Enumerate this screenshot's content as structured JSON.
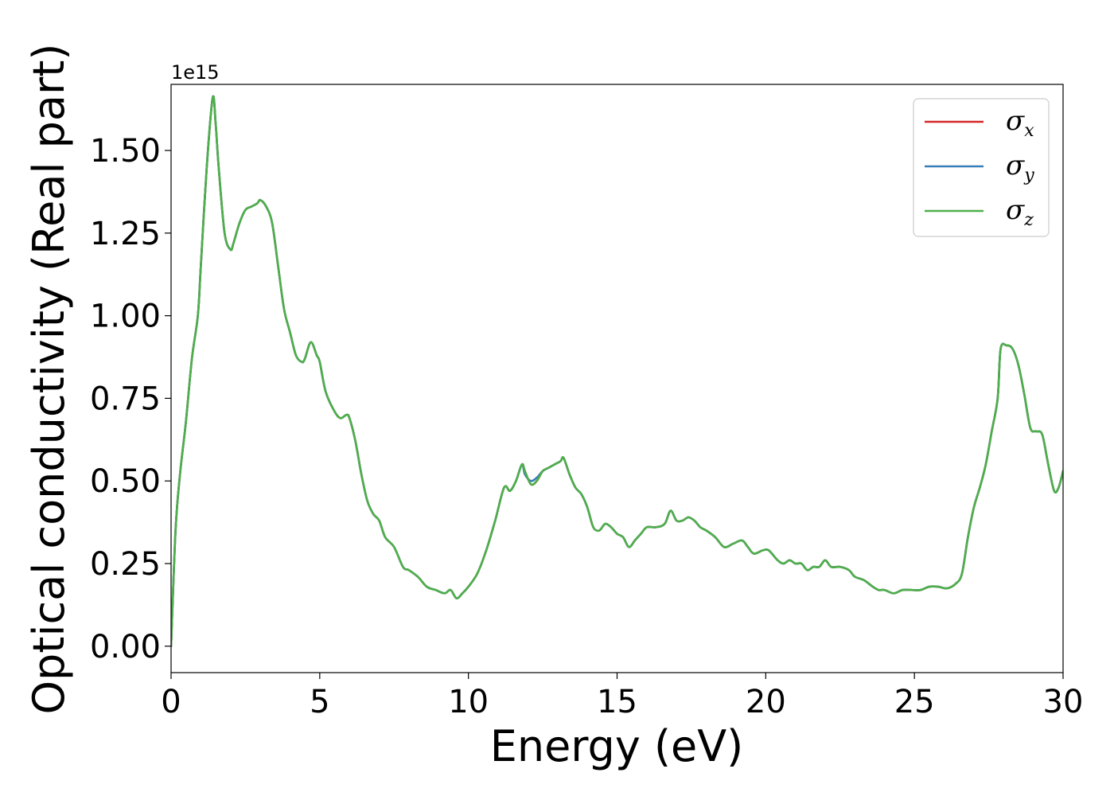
{
  "chart_data": {
    "type": "line",
    "xlabel": "Energy (eV)",
    "ylabel": "Optical conductivity (Real part)",
    "y_offset_label": "1e15",
    "y_scale_factor": 1000000000000000.0,
    "xlim": [
      0,
      30
    ],
    "ylim": [
      -0.08,
      1.7
    ],
    "x_ticks": [
      0,
      5,
      10,
      15,
      20,
      25,
      30
    ],
    "x_tick_labels": [
      "0",
      "5",
      "10",
      "15",
      "20",
      "25",
      "30"
    ],
    "y_ticks": [
      0,
      0.25,
      0.5,
      0.75,
      1.0,
      1.25,
      1.5
    ],
    "y_tick_labels": [
      "0.00",
      "0.25",
      "0.50",
      "0.75",
      "1.00",
      "1.25",
      "1.50"
    ],
    "grid": false,
    "legend_position": "top-right",
    "x": [
      0,
      0.15,
      0.3,
      0.5,
      0.7,
      0.9,
      1.0,
      1.2,
      1.4,
      1.5,
      1.6,
      1.8,
      2.0,
      2.1,
      2.3,
      2.5,
      2.7,
      2.9,
      3.0,
      3.2,
      3.4,
      3.6,
      3.8,
      4.0,
      4.2,
      4.4,
      4.5,
      4.7,
      4.9,
      5.0,
      5.2,
      5.5,
      5.7,
      5.9,
      6.0,
      6.2,
      6.4,
      6.6,
      6.8,
      7.0,
      7.2,
      7.5,
      7.8,
      8.0,
      8.3,
      8.6,
      8.9,
      9.2,
      9.4,
      9.6,
      9.8,
      10.0,
      10.3,
      10.6,
      10.9,
      11.2,
      11.4,
      11.6,
      11.8,
      11.9,
      12.1,
      12.3,
      12.5,
      12.7,
      12.9,
      13.1,
      13.2,
      13.4,
      13.6,
      13.8,
      14.0,
      14.2,
      14.4,
      14.6,
      14.8,
      15.0,
      15.2,
      15.4,
      15.6,
      15.8,
      16.0,
      16.3,
      16.6,
      16.8,
      17.0,
      17.2,
      17.4,
      17.6,
      17.8,
      18.0,
      18.3,
      18.6,
      18.9,
      19.2,
      19.4,
      19.6,
      19.9,
      20.1,
      20.4,
      20.6,
      20.8,
      21.0,
      21.2,
      21.4,
      21.6,
      21.8,
      22.0,
      22.2,
      22.5,
      22.8,
      23.0,
      23.3,
      23.6,
      23.8,
      24.0,
      24.3,
      24.6,
      24.9,
      25.2,
      25.5,
      25.8,
      26.1,
      26.4,
      26.6,
      26.8,
      27.0,
      27.2,
      27.4,
      27.6,
      27.8,
      27.9,
      28.1,
      28.3,
      28.5,
      28.7,
      28.9,
      29.1,
      29.3,
      29.5,
      29.7,
      29.85,
      30.0
    ],
    "series": [
      {
        "name": "σx",
        "symbol": "σ",
        "subscript": "x",
        "color": "#d62728",
        "values": [
          0.0,
          0.35,
          0.52,
          0.68,
          0.87,
          1.0,
          1.15,
          1.45,
          1.66,
          1.58,
          1.45,
          1.25,
          1.2,
          1.22,
          1.28,
          1.32,
          1.33,
          1.34,
          1.35,
          1.33,
          1.28,
          1.15,
          1.02,
          0.95,
          0.88,
          0.86,
          0.87,
          0.92,
          0.88,
          0.86,
          0.77,
          0.71,
          0.69,
          0.7,
          0.69,
          0.62,
          0.52,
          0.44,
          0.4,
          0.38,
          0.33,
          0.3,
          0.24,
          0.23,
          0.21,
          0.18,
          0.17,
          0.16,
          0.17,
          0.145,
          0.16,
          0.18,
          0.22,
          0.29,
          0.38,
          0.48,
          0.47,
          0.5,
          0.55,
          0.53,
          0.49,
          0.5,
          0.53,
          0.54,
          0.55,
          0.56,
          0.57,
          0.52,
          0.48,
          0.46,
          0.42,
          0.36,
          0.35,
          0.37,
          0.36,
          0.34,
          0.33,
          0.3,
          0.32,
          0.34,
          0.36,
          0.36,
          0.37,
          0.41,
          0.38,
          0.38,
          0.39,
          0.38,
          0.36,
          0.35,
          0.33,
          0.3,
          0.31,
          0.32,
          0.3,
          0.28,
          0.29,
          0.29,
          0.26,
          0.25,
          0.26,
          0.25,
          0.25,
          0.23,
          0.24,
          0.24,
          0.26,
          0.24,
          0.24,
          0.23,
          0.21,
          0.2,
          0.18,
          0.17,
          0.17,
          0.16,
          0.17,
          0.17,
          0.17,
          0.18,
          0.18,
          0.175,
          0.19,
          0.22,
          0.33,
          0.42,
          0.48,
          0.55,
          0.65,
          0.75,
          0.9,
          0.91,
          0.9,
          0.85,
          0.76,
          0.66,
          0.65,
          0.64,
          0.55,
          0.47,
          0.48,
          0.53
        ]
      },
      {
        "name": "σy",
        "symbol": "σ",
        "subscript": "y",
        "color": "#377eb8",
        "values": [
          0.0,
          0.35,
          0.52,
          0.68,
          0.87,
          1.0,
          1.15,
          1.45,
          1.66,
          1.58,
          1.45,
          1.25,
          1.2,
          1.22,
          1.28,
          1.32,
          1.33,
          1.34,
          1.35,
          1.33,
          1.28,
          1.15,
          1.02,
          0.95,
          0.88,
          0.86,
          0.87,
          0.92,
          0.88,
          0.86,
          0.77,
          0.71,
          0.69,
          0.7,
          0.69,
          0.62,
          0.52,
          0.44,
          0.4,
          0.38,
          0.33,
          0.3,
          0.24,
          0.23,
          0.21,
          0.18,
          0.17,
          0.16,
          0.17,
          0.145,
          0.16,
          0.18,
          0.22,
          0.29,
          0.38,
          0.48,
          0.47,
          0.5,
          0.55,
          0.52,
          0.5,
          0.51,
          0.53,
          0.54,
          0.55,
          0.56,
          0.57,
          0.52,
          0.48,
          0.46,
          0.42,
          0.36,
          0.35,
          0.37,
          0.36,
          0.34,
          0.33,
          0.3,
          0.32,
          0.34,
          0.36,
          0.36,
          0.37,
          0.41,
          0.38,
          0.38,
          0.39,
          0.38,
          0.36,
          0.35,
          0.33,
          0.3,
          0.31,
          0.32,
          0.3,
          0.28,
          0.29,
          0.29,
          0.26,
          0.25,
          0.26,
          0.25,
          0.25,
          0.23,
          0.24,
          0.24,
          0.26,
          0.24,
          0.24,
          0.23,
          0.21,
          0.2,
          0.18,
          0.17,
          0.17,
          0.16,
          0.17,
          0.17,
          0.17,
          0.18,
          0.18,
          0.175,
          0.19,
          0.22,
          0.33,
          0.42,
          0.48,
          0.55,
          0.65,
          0.75,
          0.9,
          0.91,
          0.9,
          0.85,
          0.76,
          0.66,
          0.65,
          0.64,
          0.55,
          0.47,
          0.48,
          0.53
        ]
      },
      {
        "name": "σz",
        "symbol": "σ",
        "subscript": "z",
        "color": "#4daf4a",
        "values": [
          0.0,
          0.35,
          0.52,
          0.68,
          0.87,
          1.0,
          1.15,
          1.45,
          1.66,
          1.58,
          1.45,
          1.25,
          1.2,
          1.22,
          1.28,
          1.32,
          1.33,
          1.34,
          1.35,
          1.33,
          1.28,
          1.15,
          1.02,
          0.95,
          0.88,
          0.86,
          0.87,
          0.92,
          0.88,
          0.86,
          0.77,
          0.71,
          0.69,
          0.7,
          0.69,
          0.62,
          0.52,
          0.44,
          0.4,
          0.38,
          0.33,
          0.3,
          0.24,
          0.23,
          0.21,
          0.18,
          0.17,
          0.16,
          0.17,
          0.145,
          0.16,
          0.18,
          0.22,
          0.29,
          0.38,
          0.48,
          0.47,
          0.5,
          0.55,
          0.53,
          0.49,
          0.5,
          0.53,
          0.54,
          0.55,
          0.56,
          0.57,
          0.52,
          0.48,
          0.46,
          0.42,
          0.36,
          0.35,
          0.37,
          0.36,
          0.34,
          0.33,
          0.3,
          0.32,
          0.34,
          0.36,
          0.36,
          0.37,
          0.41,
          0.38,
          0.38,
          0.39,
          0.38,
          0.36,
          0.35,
          0.33,
          0.3,
          0.31,
          0.32,
          0.3,
          0.28,
          0.29,
          0.29,
          0.26,
          0.25,
          0.26,
          0.25,
          0.25,
          0.23,
          0.24,
          0.24,
          0.26,
          0.24,
          0.24,
          0.23,
          0.21,
          0.2,
          0.18,
          0.17,
          0.17,
          0.16,
          0.17,
          0.17,
          0.17,
          0.18,
          0.18,
          0.175,
          0.19,
          0.22,
          0.33,
          0.42,
          0.48,
          0.55,
          0.65,
          0.75,
          0.9,
          0.91,
          0.9,
          0.85,
          0.76,
          0.66,
          0.65,
          0.64,
          0.55,
          0.47,
          0.48,
          0.53
        ]
      }
    ]
  }
}
